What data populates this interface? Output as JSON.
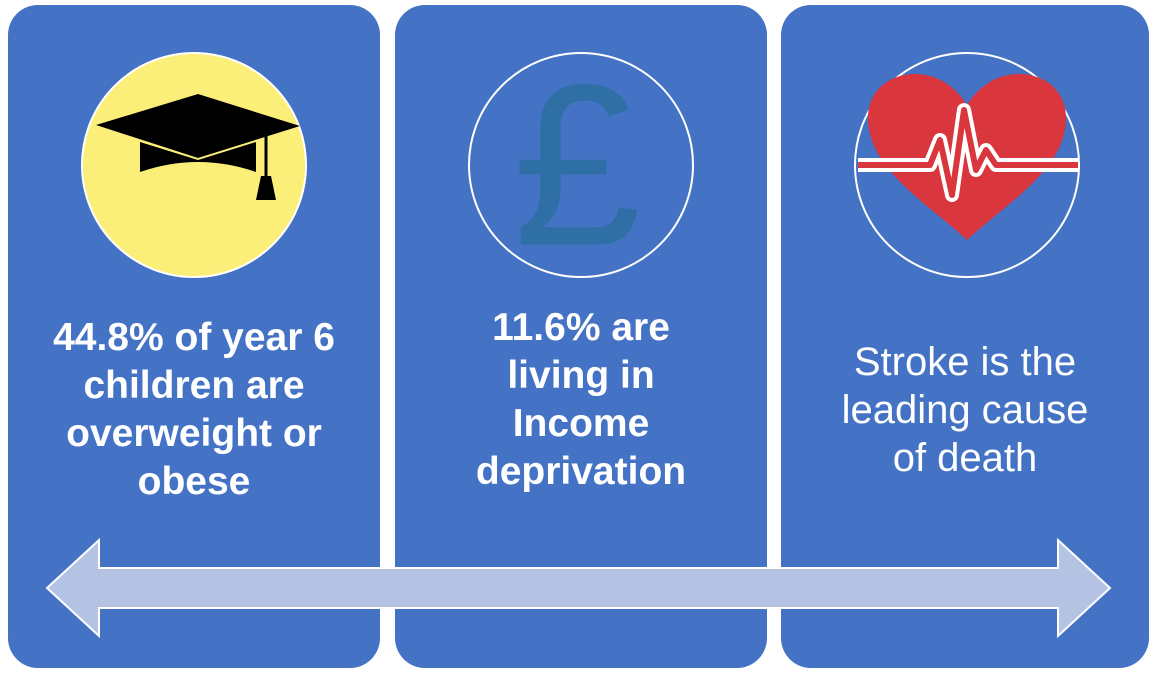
{
  "panels": [
    {
      "text": "44.8% of year 6 children are overweight or obese",
      "bold": true
    },
    {
      "icon": "£",
      "text": "11.6% are living in Income deprivation",
      "bold": true
    },
    {
      "text": "Stroke is the leading cause of death",
      "bold": false
    }
  ]
}
